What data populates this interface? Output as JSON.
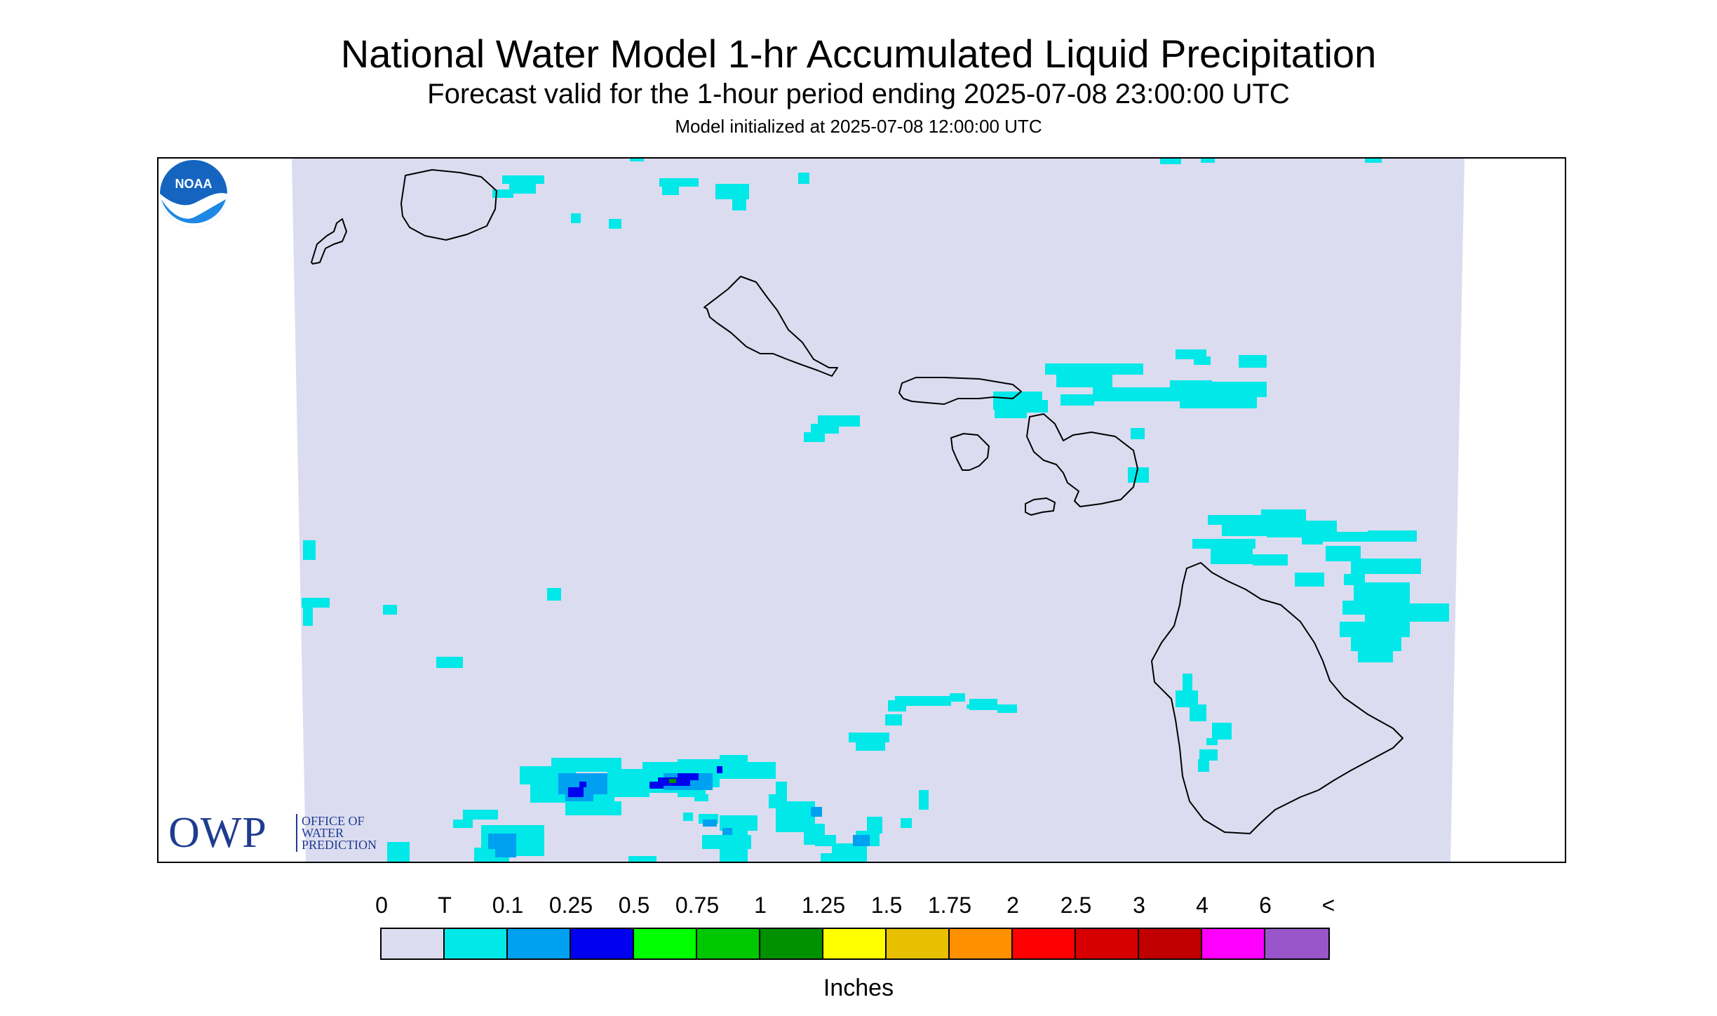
{
  "title": "National Water Model 1-hr Accumulated Liquid Precipitation",
  "subtitle": "Forecast valid for the 1-hour period ending 2025-07-08 23:00:00 UTC",
  "init_text": "Model initialized at 2025-07-08 12:00:00 UTC",
  "logos": {
    "owp_letters": "OWP",
    "owp_text": [
      "OFFICE OF",
      "WATER",
      "PREDICTION"
    ],
    "noaa_text": "NOAA"
  },
  "legend": {
    "units": "Inches",
    "labels": [
      "0",
      "T",
      "0.1",
      "0.25",
      "0.5",
      "0.75",
      "1",
      "1.25",
      "1.5",
      "1.75",
      "2",
      "2.5",
      "3",
      "4",
      "6",
      "<"
    ],
    "colors": [
      "#dcdcf0",
      "#00e8e8",
      "#00a0f0",
      "#0000f0",
      "#00ff00",
      "#00c800",
      "#009000",
      "#ffff00",
      "#e7c000",
      "#ff9000",
      "#ff0000",
      "#d60000",
      "#c00000",
      "#ff00ff",
      "#9955c9"
    ]
  },
  "colors": {
    "no_precip": "#dcdcf0",
    "trace": "#00e8e8",
    "light": "#00a0f0",
    "moderate": "#0000f0",
    "coastline": "#000000",
    "brand_blue": "#1f3d8f"
  }
}
